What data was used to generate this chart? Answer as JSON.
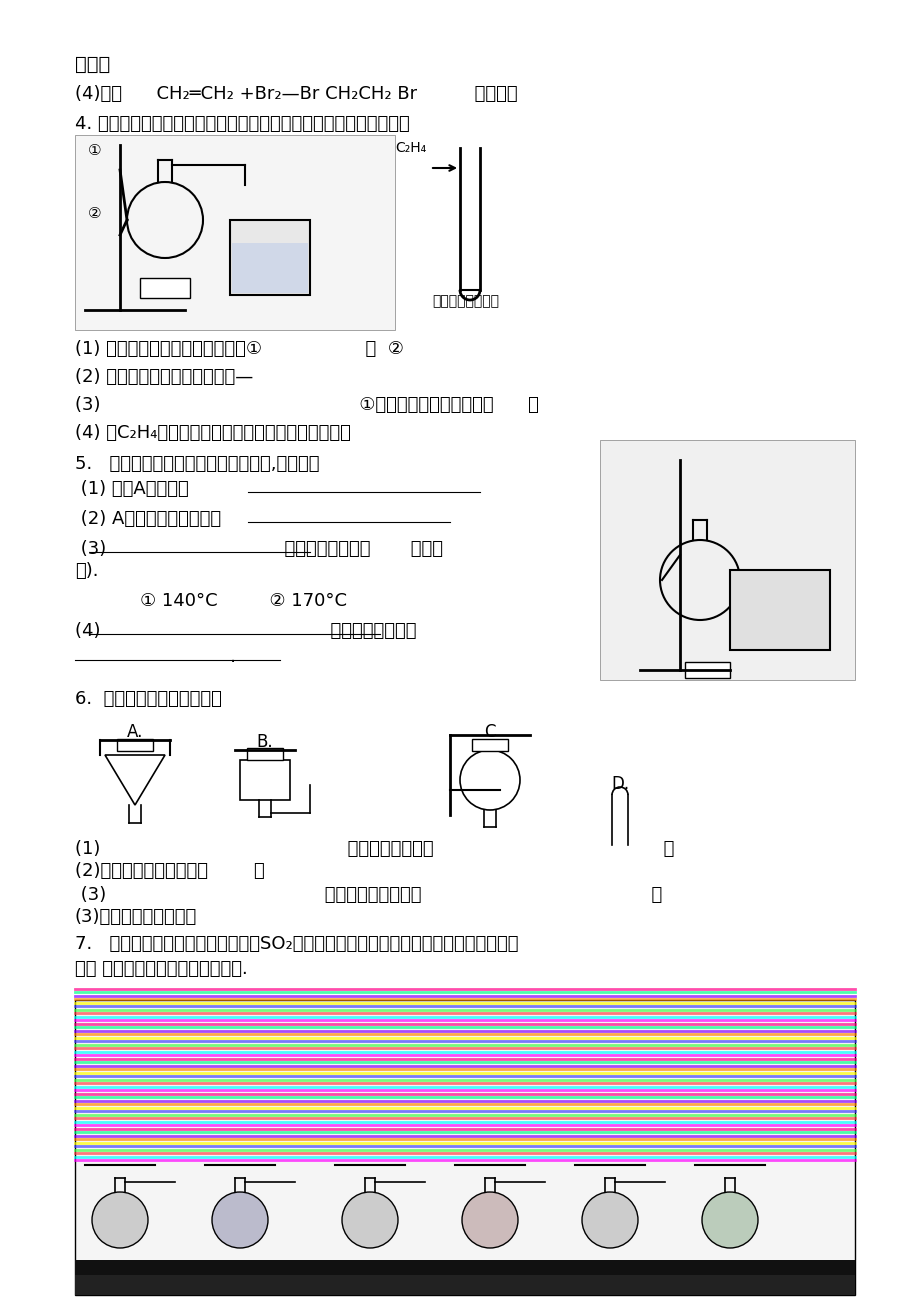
{
  "bg_color": "#ffffff",
  "title_line": "空气法",
  "line2": "(4)加成      CH₂═CH₂ +Br₂—Br CH₂CH₂ Br          溶液褪色",
  "line3": "4. 实验室制取乙烯和乙烯性质实验的装置如图所示请回答以下问题：",
  "q4_1": "(1) 写出图中有标号仪器的名称：①                  ，  ②",
  "q4_2": "(2) 制取乙烯反应的化学方程式—",
  "q4_3": "(3)                                             ①中加入碎瓷片的作用是：      ；",
  "q4_4": "(4) 将C₂H₄通入溴的四氯化碳溶液中，溶液的颜色会      ",
  "line_q5": "5.   实验室制取乙烯的装置如右图所示,请回答：",
  "q5_1": " (1) 仪器A的名称是",
  "q5_2": " (2) A中加入的两种试剂是                  ",
  "q5_3": " (3)                               反应温度应控制在       （填序",
  "q5_3b": "号).",
  "q5_3c": "① 140°C         ② 170°C",
  "q5_4": "(4)                                        收集乙烯的方法是",
  "q5_4b": "                           .",
  "line_q6": "6.  现有下列气体发生装置：",
  "q6_1": "(1)                                           可用来制备氯气的                                        ；",
  "q6_2": "(2)可用来制备乙烯气体的        ；",
  "q6_3": " (3)                                      可用来制备氮气的是                                        ；",
  "q6_4": "(3)可用来制备氢气的是",
  "line_q7": "7.   实验室制取乙烯时，常伴有少量SO₂等杂质气体生成。现利用下图所示装置制取较纯",
  "line_q7b": "净的 乙烯，并检验乙烯的化学性质."
}
